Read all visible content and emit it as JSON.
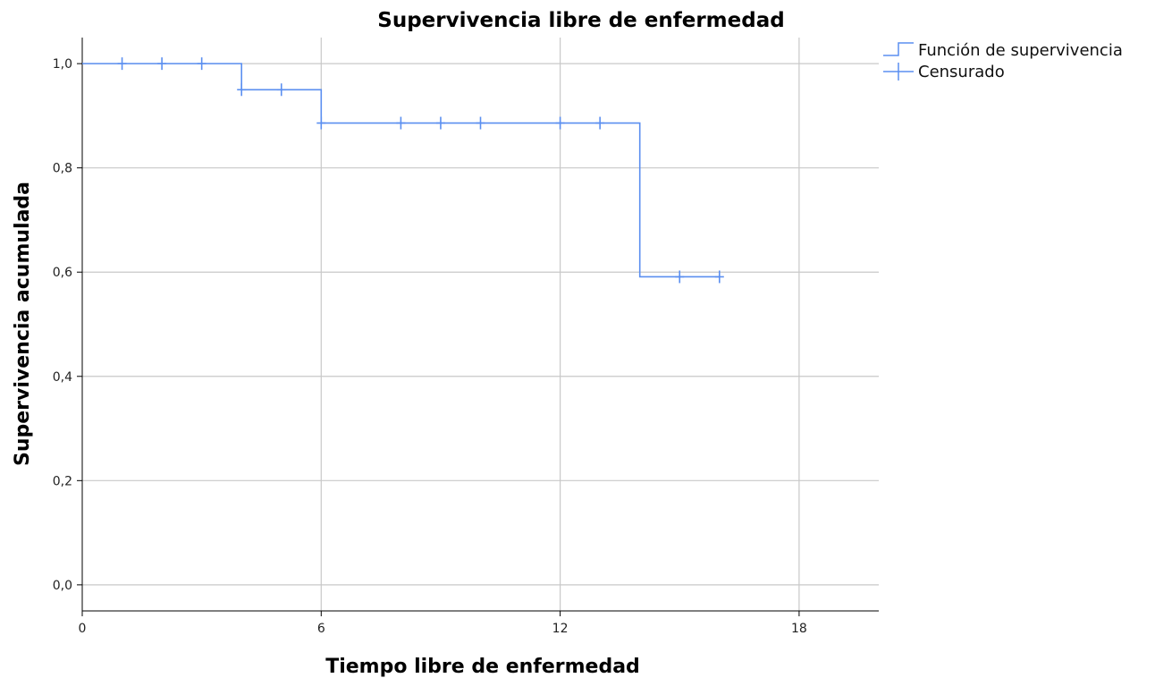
{
  "chart_data": {
    "type": "line",
    "title": "Supervivencia libre de enfermedad",
    "xlabel": "Tiempo libre de enfermedad",
    "ylabel": "Supervivencia acumulada",
    "xlim": [
      0,
      20
    ],
    "ylim": [
      -0.05,
      1.05
    ],
    "x_ticks": [
      0,
      6,
      12,
      18
    ],
    "x_tick_labels": [
      "0",
      "6",
      "12",
      "18"
    ],
    "y_ticks": [
      0,
      0.2,
      0.4,
      0.6,
      0.8,
      1.0
    ],
    "y_tick_labels": [
      "0,0",
      "0,2",
      "0,4",
      "0,6",
      "0,8",
      "1,0"
    ],
    "grid": true,
    "legend_position": "top-right",
    "series_color": "#5b8ff0",
    "grid_color": "#c8c8c8",
    "legend": [
      "Función de supervivencia",
      "Censurado"
    ],
    "survival_steps": [
      {
        "x": 0,
        "y": 1.0
      },
      {
        "x": 4,
        "y": 0.95
      },
      {
        "x": 6,
        "y": 0.886
      },
      {
        "x": 14,
        "y": 0.591
      },
      {
        "x": 16,
        "y": 0.591
      }
    ],
    "censored": [
      {
        "x": 1,
        "y": 1.0
      },
      {
        "x": 2,
        "y": 1.0
      },
      {
        "x": 3,
        "y": 1.0
      },
      {
        "x": 4,
        "y": 0.95
      },
      {
        "x": 5,
        "y": 0.95
      },
      {
        "x": 6,
        "y": 0.886
      },
      {
        "x": 8,
        "y": 0.886
      },
      {
        "x": 9,
        "y": 0.886
      },
      {
        "x": 10,
        "y": 0.886
      },
      {
        "x": 12,
        "y": 0.886
      },
      {
        "x": 13,
        "y": 0.886
      },
      {
        "x": 15,
        "y": 0.591
      },
      {
        "x": 16,
        "y": 0.591
      }
    ]
  }
}
